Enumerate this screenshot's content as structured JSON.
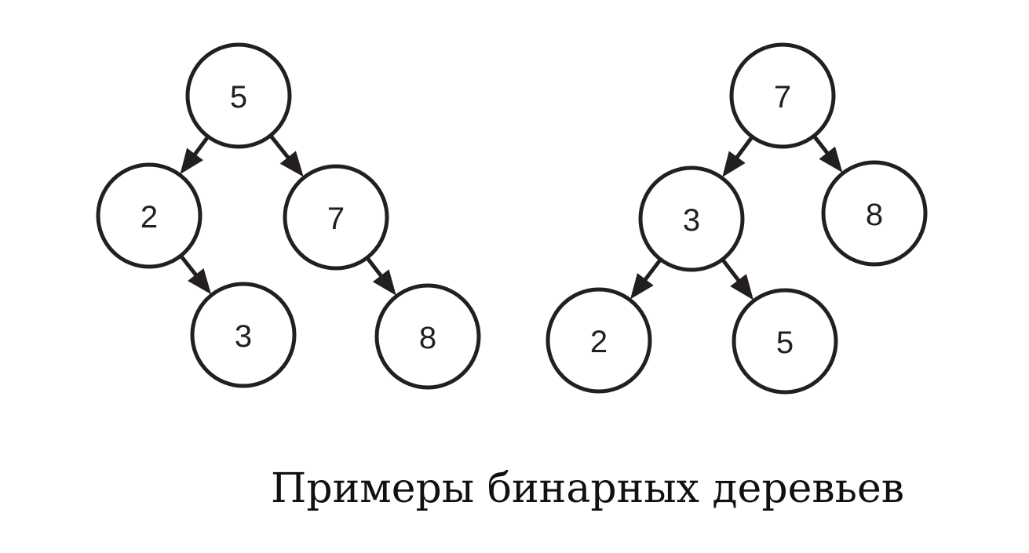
{
  "caption": "Примеры бинарных деревьев",
  "colors": {
    "stroke": "#231f20",
    "fill": "#ffffff"
  },
  "trees": [
    {
      "nodes": [
        {
          "id": "L5",
          "label": "5"
        },
        {
          "id": "L2",
          "label": "2"
        },
        {
          "id": "L7",
          "label": "7"
        },
        {
          "id": "L3",
          "label": "3"
        },
        {
          "id": "L8",
          "label": "8"
        }
      ],
      "edges": [
        {
          "from": "L5",
          "to": "L2"
        },
        {
          "from": "L5",
          "to": "L7"
        },
        {
          "from": "L2",
          "to": "L3"
        },
        {
          "from": "L7",
          "to": "L8"
        }
      ]
    },
    {
      "nodes": [
        {
          "id": "R7",
          "label": "7"
        },
        {
          "id": "R3",
          "label": "3"
        },
        {
          "id": "R8",
          "label": "8"
        },
        {
          "id": "R2",
          "label": "2"
        },
        {
          "id": "R5",
          "label": "5"
        }
      ],
      "edges": [
        {
          "from": "R7",
          "to": "R3"
        },
        {
          "from": "R7",
          "to": "R8"
        },
        {
          "from": "R3",
          "to": "R2"
        },
        {
          "from": "R3",
          "to": "R5"
        }
      ]
    }
  ]
}
